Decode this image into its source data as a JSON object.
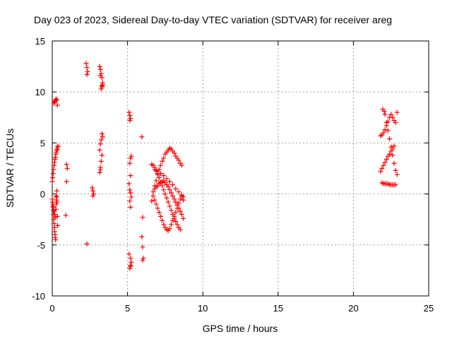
{
  "chart_data": {
    "type": "scatter",
    "title": "Day 023 of 2023, Sidereal Day-to-day VTEC variation (SDTVAR) for receiver areg",
    "xlabel": "GPS time / hours",
    "ylabel": "SDTVAR / TECUs",
    "xlim": [
      0,
      25
    ],
    "ylim": [
      -10,
      15
    ],
    "xticks": [
      0,
      5,
      10,
      15,
      20,
      25
    ],
    "yticks": [
      -10,
      -5,
      0,
      5,
      10,
      15
    ],
    "xtick_labels": [
      "0",
      "5",
      "10",
      "15",
      "20",
      "25"
    ],
    "ytick_labels": [
      "-10",
      "-5",
      "0",
      "5",
      "10",
      "15"
    ],
    "grid": true,
    "marker": "+",
    "color": "#ff0000",
    "series": [
      {
        "name": "areg",
        "x": [
          0.0,
          0.02,
          0.04,
          0.06,
          0.08,
          0.1,
          0.12,
          0.14,
          0.16,
          0.18,
          0.2,
          0.22,
          0.24,
          0.26,
          0.28,
          0.3,
          0.32,
          0.34,
          0.36,
          0.0,
          0.03,
          0.06,
          0.09,
          0.12,
          0.15,
          0.18,
          0.21,
          0.24,
          0.27,
          0.3,
          0.33,
          0.36,
          0.38,
          0.1,
          0.14,
          0.18,
          0.22,
          0.26,
          0.3,
          0.34,
          0.05,
          0.08,
          0.12,
          0.16,
          0.2,
          0.25,
          0.3,
          0.95,
          1.0,
          0.95,
          0.9,
          2.25,
          2.3,
          2.35,
          2.3,
          2.3,
          2.65,
          2.7,
          2.75,
          2.7,
          3.15,
          3.2,
          3.25,
          3.3,
          3.35,
          3.3,
          3.25,
          3.2,
          3.3,
          3.35,
          3.25,
          3.2,
          3.15,
          3.3,
          3.25,
          3.2,
          3.15,
          3.2,
          3.3,
          3.35,
          5.1,
          5.15,
          5.2,
          5.15,
          5.2,
          5.25,
          5.15,
          5.2,
          5.1,
          5.15,
          5.2,
          5.25,
          5.15,
          5.2,
          5.1,
          5.2,
          5.25,
          5.2,
          5.15,
          5.2,
          5.95,
          6.0,
          5.95,
          6.0,
          6.05,
          6.0,
          6.6,
          6.7,
          6.8,
          6.9,
          7.0,
          7.1,
          7.2,
          7.3,
          7.4,
          7.5,
          7.6,
          7.7,
          7.8,
          7.9,
          8.0,
          8.1,
          8.2,
          8.3,
          8.4,
          8.5,
          8.6,
          6.6,
          6.7,
          6.8,
          6.9,
          7.0,
          7.1,
          7.2,
          7.3,
          7.4,
          7.5,
          7.6,
          7.7,
          7.8,
          7.9,
          8.0,
          8.1,
          8.2,
          8.3,
          8.4,
          8.5,
          6.8,
          6.9,
          7.0,
          7.1,
          7.2,
          7.3,
          7.4,
          7.5,
          7.6,
          7.7,
          7.8,
          7.9,
          8.0,
          8.1,
          8.2,
          8.3,
          8.4,
          8.5,
          8.6,
          8.7,
          6.7,
          6.8,
          6.9,
          7.0,
          7.1,
          7.2,
          7.3,
          7.4,
          7.5,
          7.6,
          7.7,
          7.8,
          7.9,
          8.0,
          8.1,
          8.2,
          8.3,
          8.4,
          8.5,
          8.6,
          8.7,
          6.8,
          7.0,
          7.2,
          7.4,
          7.6,
          7.8,
          8.0,
          8.2,
          8.4,
          8.6,
          8.7,
          21.8,
          21.9,
          22.0,
          22.1,
          22.2,
          22.3,
          22.4,
          22.5,
          22.6,
          22.7,
          22.8,
          22.9,
          21.8,
          21.9,
          22.0,
          22.1,
          22.2,
          22.3,
          22.4,
          22.5,
          22.6,
          22.7,
          21.9,
          22.0,
          22.1,
          22.2,
          22.3,
          22.4,
          22.5,
          22.6,
          22.7,
          22.8,
          21.95,
          22.05,
          22.1,
          22.2,
          22.3,
          22.4,
          22.5,
          22.6,
          22.7,
          22.8,
          22.9
        ],
        "y": [
          -0.5,
          -0.8,
          -1.2,
          -1.6,
          -2.0,
          -2.5,
          -2.9,
          -3.3,
          -3.7,
          -4.0,
          -4.3,
          -4.5,
          -1.5,
          -1.0,
          -0.6,
          -0.3,
          -0.8,
          -2.2,
          -3.1,
          1.2,
          1.6,
          2.0,
          2.4,
          2.8,
          3.1,
          3.4,
          3.6,
          3.9,
          4.1,
          4.3,
          4.4,
          4.6,
          4.7,
          8.9,
          9.0,
          9.1,
          9.2,
          9.3,
          9.2,
          8.7,
          -1.0,
          -1.3,
          -1.7,
          -2.0,
          -2.3,
          -0.2,
          0.3,
          2.9,
          2.5,
          1.2,
          -2.1,
          12.8,
          12.4,
          12.0,
          11.7,
          -4.9,
          0.6,
          0.3,
          0.0,
          -0.2,
          12.5,
          12.2,
          11.8,
          11.4,
          10.9,
          10.6,
          10.3,
          11.6,
          5.9,
          5.6,
          5.3,
          4.9,
          4.3,
          3.8,
          3.2,
          2.6,
          2.1,
          2.4,
          10.5,
          10.7,
          8.0,
          7.7,
          7.4,
          7.2,
          3.5,
          3.7,
          3.0,
          1.8,
          1.0,
          0.4,
          0.1,
          -0.3,
          -0.7,
          -1.3,
          -5.9,
          -6.3,
          -6.7,
          -7.0,
          -7.3,
          -7.1,
          5.6,
          -2.3,
          -4.2,
          -5.2,
          -6.3,
          -6.5,
          -0.7,
          0.2,
          0.8,
          1.3,
          1.9,
          2.4,
          2.8,
          3.2,
          3.5,
          3.9,
          4.1,
          4.3,
          4.5,
          4.4,
          4.2,
          4.0,
          3.7,
          3.5,
          3.3,
          3.0,
          2.8,
          2.9,
          2.8,
          2.6,
          2.3,
          2.0,
          1.6,
          1.2,
          0.8,
          0.4,
          0.0,
          -0.4,
          -0.8,
          -1.2,
          -1.6,
          -2.0,
          -2.4,
          -2.7,
          -3.0,
          -3.3,
          -3.5,
          0.5,
          0.7,
          0.8,
          1.0,
          1.1,
          1.2,
          1.3,
          1.1,
          0.9,
          0.7,
          0.4,
          0.1,
          -0.2,
          -0.5,
          -0.8,
          -1.1,
          -1.4,
          -1.7,
          -2.0,
          -2.4,
          -0.2,
          -0.6,
          -1.0,
          -1.4,
          -1.8,
          -2.2,
          -2.6,
          -3.0,
          -3.3,
          -3.5,
          -3.6,
          -3.4,
          -3.0,
          -2.6,
          -2.2,
          -1.8,
          -1.4,
          -0.9,
          -0.5,
          -0.1,
          -0.3,
          2.4,
          2.2,
          2.0,
          1.8,
          1.5,
          1.2,
          0.9,
          0.5,
          0.2,
          -0.2,
          -0.6,
          5.7,
          5.8,
          6.0,
          6.3,
          6.7,
          7.1,
          7.5,
          7.8,
          7.5,
          7.2,
          7.0,
          8.0,
          2.2,
          2.5,
          2.8,
          3.1,
          3.4,
          3.7,
          3.9,
          4.2,
          4.4,
          4.7,
          1.1,
          1.0,
          1.0,
          1.0,
          1.0,
          0.9,
          0.9,
          0.9,
          0.9,
          0.9,
          8.3,
          8.1,
          7.8,
          7.0,
          6.2,
          5.4,
          4.6,
          3.8,
          3.0,
          2.3,
          1.9
        ]
      }
    ]
  }
}
